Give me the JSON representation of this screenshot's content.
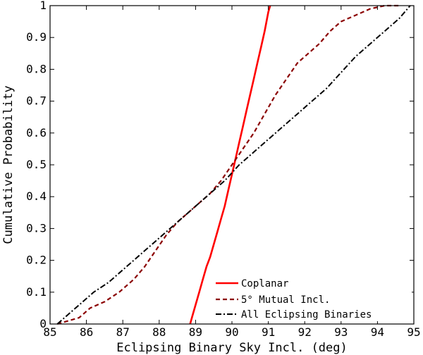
{
  "chart_data": {
    "type": "line",
    "xlabel": "Eclipsing Binary Sky Incl. (deg)",
    "ylabel": "Cumulative Probability",
    "xlim": [
      85,
      95
    ],
    "ylim": [
      0,
      1
    ],
    "xticks": [
      85,
      86,
      87,
      88,
      89,
      90,
      91,
      92,
      93,
      94,
      95
    ],
    "yticks": [
      0,
      0.1,
      0.2,
      0.3,
      0.4,
      0.5,
      0.6,
      0.7,
      0.8,
      0.9,
      1
    ],
    "xtick_labels": [
      "85",
      "86",
      "87",
      "88",
      "89",
      "90",
      "91",
      "92",
      "93",
      "94",
      "95"
    ],
    "ytick_labels": [
      "0",
      "0.1",
      "0.2",
      "0.3",
      "0.4",
      "0.5",
      "0.6",
      "0.7",
      "0.8",
      "0.9",
      "1"
    ],
    "grid": false,
    "legend_position": "bottom-right",
    "series": [
      {
        "name": "Coplanar",
        "color": "#ff0000",
        "style": "solid",
        "x": [
          88.85,
          88.9,
          89.0,
          89.1,
          89.2,
          89.3,
          89.4,
          89.5,
          89.6,
          89.7,
          89.8,
          89.9,
          90.0,
          90.1,
          90.2,
          90.3,
          90.4,
          90.5,
          90.6,
          90.7,
          90.8,
          90.9,
          90.95,
          91.0,
          91.05
        ],
        "y": [
          0.0,
          0.02,
          0.06,
          0.1,
          0.14,
          0.18,
          0.21,
          0.25,
          0.29,
          0.33,
          0.37,
          0.42,
          0.47,
          0.52,
          0.57,
          0.62,
          0.67,
          0.72,
          0.77,
          0.82,
          0.87,
          0.92,
          0.95,
          0.98,
          1.0
        ]
      },
      {
        "name": "5° Mutual Incl.",
        "color": "#8b0000",
        "style": "dashed",
        "x": [
          85.2,
          85.5,
          85.8,
          86.1,
          86.5,
          86.9,
          87.3,
          87.6,
          87.9,
          88.2,
          88.5,
          88.8,
          89.1,
          89.4,
          89.7,
          90.0,
          90.3,
          90.6,
          90.9,
          91.2,
          91.5,
          91.8,
          92.1,
          92.4,
          92.7,
          93.0,
          93.4,
          93.8,
          94.2,
          94.6
        ],
        "y": [
          0.0,
          0.01,
          0.02,
          0.05,
          0.07,
          0.1,
          0.14,
          0.18,
          0.23,
          0.28,
          0.32,
          0.35,
          0.38,
          0.41,
          0.45,
          0.5,
          0.55,
          0.6,
          0.66,
          0.72,
          0.77,
          0.82,
          0.85,
          0.88,
          0.92,
          0.95,
          0.97,
          0.99,
          1.0,
          1.0
        ]
      },
      {
        "name": "All Eclipsing Binaries",
        "color": "#000000",
        "style": "dashdot",
        "x": [
          85.2,
          85.5,
          85.8,
          86.2,
          86.6,
          87.0,
          87.4,
          87.8,
          88.2,
          88.6,
          89.0,
          89.4,
          89.8,
          90.2,
          90.6,
          91.0,
          91.4,
          91.8,
          92.2,
          92.6,
          93.0,
          93.4,
          93.8,
          94.2,
          94.6,
          94.9
        ],
        "y": [
          0.0,
          0.03,
          0.06,
          0.1,
          0.13,
          0.17,
          0.21,
          0.25,
          0.29,
          0.33,
          0.37,
          0.41,
          0.45,
          0.5,
          0.54,
          0.58,
          0.62,
          0.66,
          0.7,
          0.74,
          0.79,
          0.84,
          0.88,
          0.92,
          0.96,
          1.0
        ]
      }
    ],
    "legend": [
      {
        "label": "Coplanar"
      },
      {
        "label": "5° Mutual Incl."
      },
      {
        "label": "All Eclipsing Binaries"
      }
    ]
  }
}
